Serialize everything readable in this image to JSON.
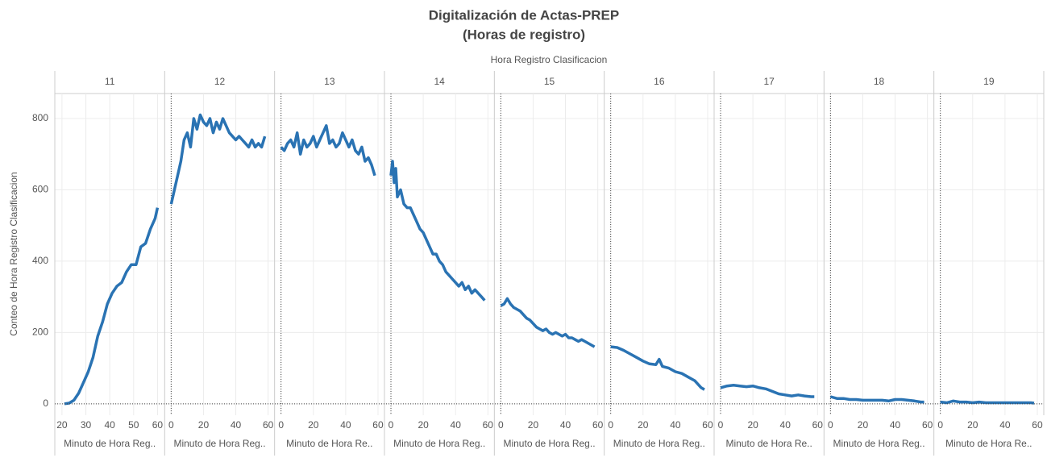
{
  "chart_data": {
    "type": "line",
    "title": "Digitalización de Actas-PREP",
    "subtitle": "(Horas de registro)",
    "column_label": "Hora Registro Clasificacion",
    "ylabel": "Conteo de Hora Registro Clasificacion",
    "color": "#2a73b3",
    "grid": true,
    "ylim": [
      -32,
      870
    ],
    "yticks": [
      0,
      200,
      400,
      600,
      800
    ],
    "panels": [
      {
        "name": "11",
        "xlabel": "Minuto de Hora Reg..",
        "xlim": [
          17,
          63
        ],
        "xticks": [
          20,
          30,
          40,
          50,
          60
        ],
        "x": [
          21,
          23,
          25,
          27,
          29,
          31,
          33,
          35,
          37,
          39,
          41,
          43,
          45,
          47,
          49,
          51,
          53,
          55,
          57,
          59,
          60
        ],
        "values": [
          0,
          2,
          10,
          30,
          60,
          90,
          130,
          190,
          230,
          280,
          310,
          330,
          340,
          370,
          390,
          390,
          440,
          450,
          490,
          520,
          550
        ]
      },
      {
        "name": "12",
        "xlabel": "Minuto de Hora Reg..",
        "xlim": [
          -4,
          64
        ],
        "xticks": [
          0,
          20,
          40,
          60
        ],
        "x": [
          0,
          2,
          4,
          6,
          8,
          10,
          12,
          14,
          16,
          18,
          20,
          22,
          24,
          26,
          28,
          30,
          32,
          34,
          36,
          38,
          40,
          42,
          44,
          46,
          48,
          50,
          52,
          54,
          56,
          58
        ],
        "values": [
          560,
          600,
          640,
          680,
          740,
          760,
          720,
          800,
          770,
          810,
          790,
          780,
          800,
          760,
          790,
          770,
          800,
          780,
          760,
          750,
          740,
          750,
          740,
          730,
          720,
          740,
          720,
          730,
          720,
          750
        ]
      },
      {
        "name": "13",
        "xlabel": "Minuto de Hora Re..",
        "xlim": [
          -4,
          64
        ],
        "xticks": [
          0,
          20,
          40,
          60
        ],
        "x": [
          0,
          2,
          4,
          6,
          8,
          10,
          12,
          14,
          16,
          18,
          20,
          22,
          24,
          26,
          28,
          30,
          32,
          34,
          36,
          38,
          40,
          42,
          44,
          46,
          48,
          50,
          52,
          54,
          56,
          58
        ],
        "values": [
          720,
          710,
          730,
          740,
          720,
          760,
          700,
          740,
          720,
          730,
          750,
          720,
          740,
          760,
          780,
          730,
          740,
          720,
          730,
          760,
          740,
          720,
          740,
          710,
          700,
          720,
          680,
          690,
          670,
          640
        ]
      },
      {
        "name": "14",
        "xlabel": "Minuto de Hora Reg..",
        "xlim": [
          -4,
          64
        ],
        "xticks": [
          0,
          20,
          40,
          60
        ],
        "x": [
          0,
          1,
          2,
          3,
          4,
          6,
          8,
          10,
          12,
          14,
          16,
          18,
          20,
          22,
          24,
          26,
          28,
          30,
          32,
          34,
          36,
          38,
          40,
          42,
          44,
          46,
          48,
          50,
          52,
          54,
          56,
          58
        ],
        "values": [
          640,
          680,
          620,
          660,
          580,
          600,
          560,
          550,
          550,
          530,
          510,
          490,
          480,
          460,
          440,
          420,
          420,
          400,
          390,
          370,
          360,
          350,
          340,
          330,
          340,
          320,
          330,
          310,
          320,
          310,
          300,
          290
        ]
      },
      {
        "name": "15",
        "xlabel": "Minuto de Hora Reg..",
        "xlim": [
          -4,
          64
        ],
        "xticks": [
          0,
          20,
          40,
          60
        ],
        "x": [
          0,
          2,
          4,
          6,
          8,
          10,
          12,
          14,
          16,
          18,
          20,
          22,
          24,
          26,
          28,
          30,
          32,
          34,
          36,
          38,
          40,
          42,
          44,
          46,
          48,
          50,
          52,
          54,
          56,
          58
        ],
        "values": [
          275,
          280,
          295,
          280,
          270,
          265,
          260,
          250,
          240,
          235,
          225,
          215,
          210,
          205,
          210,
          200,
          195,
          200,
          195,
          190,
          195,
          185,
          185,
          180,
          175,
          180,
          175,
          170,
          165,
          160
        ]
      },
      {
        "name": "16",
        "xlabel": "Minuto de Hora Reg..",
        "xlim": [
          -4,
          64
        ],
        "xticks": [
          0,
          20,
          40,
          60
        ],
        "x": [
          0,
          4,
          8,
          12,
          16,
          20,
          24,
          28,
          30,
          32,
          36,
          40,
          44,
          48,
          52,
          56,
          58
        ],
        "values": [
          160,
          158,
          150,
          140,
          130,
          120,
          112,
          110,
          125,
          105,
          100,
          90,
          85,
          75,
          65,
          45,
          40
        ]
      },
      {
        "name": "17",
        "xlabel": "Minuto de Hora Re..",
        "xlim": [
          -4,
          64
        ],
        "xticks": [
          0,
          20,
          40,
          60
        ],
        "x": [
          0,
          4,
          8,
          12,
          16,
          20,
          24,
          28,
          32,
          36,
          40,
          44,
          48,
          52,
          56,
          58
        ],
        "values": [
          45,
          50,
          52,
          50,
          48,
          50,
          45,
          42,
          35,
          28,
          25,
          22,
          25,
          22,
          20,
          20
        ]
      },
      {
        "name": "18",
        "xlabel": "Minuto de Hora Reg..",
        "xlim": [
          -4,
          64
        ],
        "xticks": [
          0,
          20,
          40,
          60
        ],
        "x": [
          0,
          4,
          8,
          12,
          16,
          20,
          24,
          28,
          32,
          36,
          40,
          44,
          48,
          52,
          56,
          58
        ],
        "values": [
          20,
          15,
          15,
          12,
          12,
          10,
          10,
          10,
          10,
          8,
          12,
          12,
          10,
          8,
          5,
          5
        ]
      },
      {
        "name": "19",
        "xlabel": "Minuto de Hora Re..",
        "xlim": [
          -4,
          64
        ],
        "xticks": [
          0,
          20,
          40,
          60
        ],
        "x": [
          0,
          4,
          8,
          12,
          16,
          20,
          24,
          28,
          32,
          36,
          40,
          44,
          48,
          52,
          56,
          58
        ],
        "values": [
          5,
          3,
          8,
          5,
          5,
          3,
          5,
          3,
          3,
          3,
          3,
          3,
          3,
          3,
          3,
          2
        ]
      }
    ]
  }
}
